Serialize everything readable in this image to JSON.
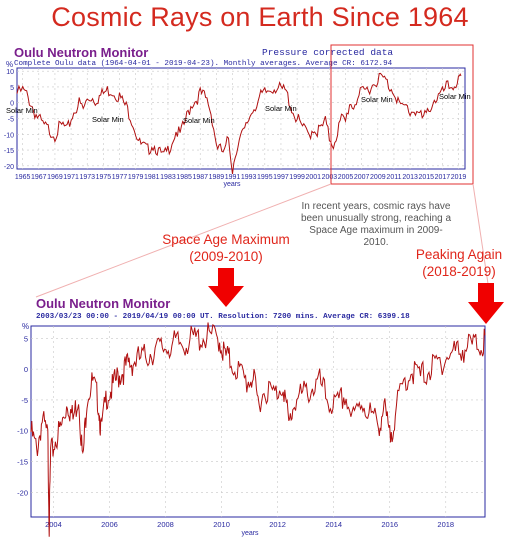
{
  "title": "Cosmic Rays on Earth Since 1964",
  "top_panel": {
    "monitor_title": "Oulu Neutron Monitor",
    "pressure_note": "Pressure corrected data",
    "subtitle": "Complete Oulu data (1964-04-01 - 2019-04-23). Monthly averages. Average CR: 6172.94",
    "unit": "%",
    "xlabel": "years",
    "solar_min_label": "Solar Min",
    "y_ticks": [
      10,
      5,
      0,
      -5,
      -10,
      -15,
      -20
    ],
    "x_ticks": [
      "1965",
      "1967",
      "1969",
      "1971",
      "1973",
      "1975",
      "1977",
      "1979",
      "1981",
      "1983",
      "1985",
      "1987",
      "1989",
      "1991",
      "1993",
      "1995",
      "1997",
      "1999",
      "2001",
      "2003",
      "2005",
      "2007",
      "2009",
      "2011",
      "2013",
      "2015",
      "2017",
      "2019"
    ]
  },
  "note_text": "In recent years, cosmic rays have been unusually strong, reaching a Space Age maximum in 2009-2010.",
  "annotations": {
    "space_age_line1": "Space Age Maximum",
    "space_age_line2": "(2009-2010)",
    "peaking_line1": "Peaking Again",
    "peaking_line2": "(2018-2019)"
  },
  "bottom_panel": {
    "monitor_title": "Oulu Neutron Monitor",
    "subtitle": "2003/03/23  00:00 - 2019/04/19  00:00 UT. Resolution: 7200 mins. Average CR: 6399.18",
    "unit": "%",
    "xlabel": "years",
    "y_ticks": [
      5,
      0,
      -5,
      -10,
      -15,
      -20
    ],
    "x_ticks": [
      "2004",
      "2006",
      "2008",
      "2010",
      "2012",
      "2014",
      "2016",
      "2018"
    ]
  },
  "colors": {
    "title": "#d42a1f",
    "line": "#b01010",
    "arrow": "#f00000",
    "monitor": "#7a1f8c",
    "axis_text": "#2a2aa0",
    "highlight_box": "#e03030"
  },
  "chart_data": [
    {
      "type": "line",
      "title": "Complete Oulu data (1964-04-01 - 2019-04-23). Monthly averages. Average CR: 6172.94",
      "xlabel": "years",
      "ylabel": "%",
      "xlim": [
        1964.3,
        2019.8
      ],
      "ylim": [
        -21,
        11
      ],
      "grid": true,
      "series": [
        {
          "x": [
            1964.3,
            1965,
            1965.5,
            1966,
            1966.5,
            1967,
            1967.5,
            1968,
            1968.5,
            1969,
            1969.5,
            1970,
            1970.5,
            1971,
            1971.5,
            1972,
            1972.5,
            1973,
            1973.5,
            1974,
            1974.5,
            1975,
            1975.5,
            1976,
            1976.5,
            1977,
            1977.5,
            1978,
            1978.5,
            1979,
            1979.5,
            1980,
            1980.5,
            1981,
            1981.5,
            1982,
            1982.5,
            1983,
            1983.5,
            1984,
            1984.5,
            1985,
            1985.5,
            1986,
            1986.5,
            1987,
            1987.5,
            1988,
            1988.5,
            1989,
            1989.5,
            1990,
            1990.5,
            1991,
            1991.5,
            1992,
            1992.5,
            1993,
            1993.5,
            1994,
            1994.5,
            1995,
            1995.5,
            1996,
            1996.5,
            1997,
            1997.5,
            1998,
            1998.5,
            1999,
            1999.5,
            2000,
            2000.5,
            2001,
            2001.5,
            2002,
            2002.5,
            2003,
            2003.5,
            2004,
            2004.5,
            2005,
            2005.5,
            2006,
            2006.5,
            2007,
            2007.5,
            2008,
            2008.5,
            2009,
            2009.5,
            2010,
            2010.5,
            2011,
            2011.5,
            2012,
            2012.5,
            2013,
            2013.5,
            2014,
            2014.5,
            2015,
            2015.5,
            2016,
            2016.5,
            2017,
            2017.5,
            2018,
            2018.5,
            2019,
            2019.3
          ],
          "y": [
            4,
            5,
            3.5,
            1,
            -2,
            -4,
            -6,
            -7,
            -8,
            -9,
            -7,
            -6,
            -8,
            -4,
            -1,
            1,
            -1,
            2,
            3,
            2,
            3,
            4,
            5,
            5,
            4,
            3,
            1,
            -1,
            -4,
            -8,
            -12,
            -13,
            -14,
            -12,
            -13,
            -15,
            -16,
            -14,
            -11,
            -8,
            -9,
            -6,
            -2,
            1,
            2,
            4,
            3,
            1,
            -4,
            -12,
            -14,
            -15,
            -10,
            -20,
            -13,
            -10,
            -8,
            -4,
            -1,
            1,
            3,
            4,
            5,
            6,
            6,
            5,
            5,
            2,
            -2,
            -4,
            -6,
            -8,
            -9,
            -7,
            -8,
            -7,
            -5,
            -10,
            -12,
            -8,
            -4,
            -5,
            1,
            0,
            3,
            4,
            5,
            6,
            7,
            9,
            9,
            8,
            6,
            5,
            2,
            -1,
            0,
            -2,
            -1,
            -2,
            -4,
            -3,
            0,
            2,
            3,
            4,
            6,
            6,
            7,
            8,
            8.5
          ]
        }
      ]
    },
    {
      "type": "line",
      "title": "2003/03/23  00:00 - 2019/04/19  00:00 UT. Resolution: 7200 mins. Average CR: 6399.18",
      "xlabel": "years",
      "ylabel": "%",
      "xlim": [
        2003.2,
        2019.4
      ],
      "ylim": [
        -24,
        7
      ],
      "grid": true,
      "series": [
        {
          "x": [
            2003.2,
            2003.4,
            2003.6,
            2003.8,
            2003.85,
            2003.9,
            2004.1,
            2004.3,
            2004.5,
            2004.7,
            2004.9,
            2005.05,
            2005.2,
            2005.4,
            2005.6,
            2005.7,
            2005.9,
            2006.1,
            2006.3,
            2006.5,
            2006.7,
            2006.9,
            2007.2,
            2007.5,
            2007.8,
            2008.1,
            2008.4,
            2008.7,
            2009.0,
            2009.3,
            2009.6,
            2009.9,
            2010.1,
            2010.3,
            2010.6,
            2010.9,
            2011.1,
            2011.3,
            2011.6,
            2011.9,
            2012.2,
            2012.4,
            2012.6,
            2012.9,
            2013.2,
            2013.5,
            2013.8,
            2014.1,
            2014.4,
            2014.7,
            2015.0,
            2015.3,
            2015.6,
            2015.8,
            2016.0,
            2016.2,
            2016.5,
            2016.8,
            2017.1,
            2017.4,
            2017.7,
            2018.0,
            2018.3,
            2018.6,
            2018.9,
            2019.2,
            2019.4
          ],
          "y": [
            -9,
            -12,
            -7,
            -10,
            -24,
            -13,
            -10,
            -8,
            -4,
            -7,
            -3,
            -14,
            -3,
            -1,
            -4,
            -9,
            -3,
            -2,
            0,
            1,
            2,
            2.5,
            3,
            4,
            4.5,
            5,
            5.2,
            5.5,
            6,
            6.3,
            6.5,
            6.2,
            3.5,
            2.5,
            1,
            -1,
            0,
            -4,
            -2,
            -3,
            -1,
            -8,
            -4,
            -3,
            -2,
            -1,
            -4,
            -5,
            -3,
            -7,
            -4,
            -6,
            -8,
            -5,
            -10,
            -6,
            -1,
            1,
            0,
            1,
            2,
            3,
            4,
            4.5,
            5,
            5.2,
            5.5
          ]
        }
      ]
    }
  ]
}
